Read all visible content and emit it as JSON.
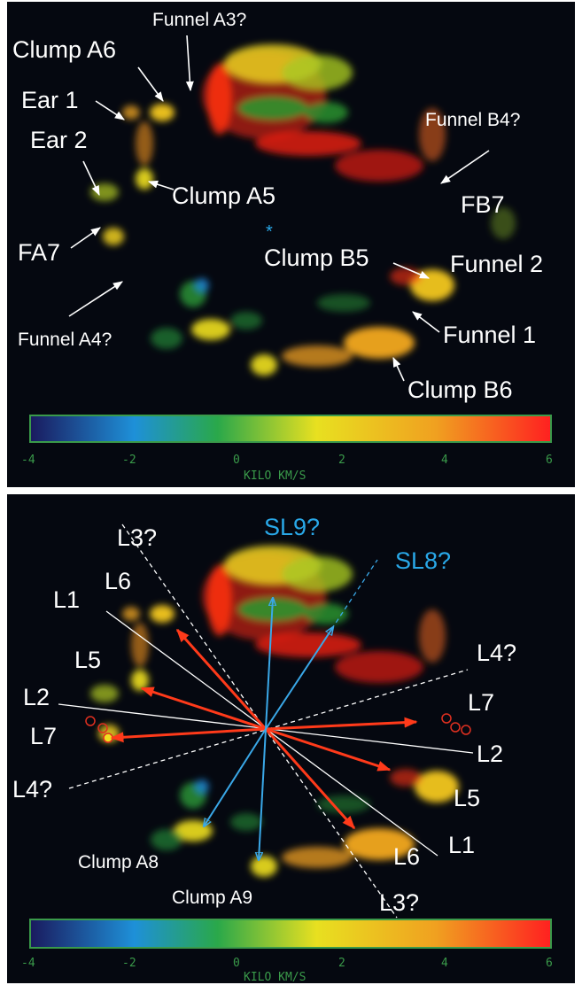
{
  "top_panel": {
    "labels": {
      "funnel_a3": "Funnel A3?",
      "clump_a6": "Clump A6",
      "ear_1": "Ear 1",
      "ear_2": "Ear 2",
      "funnel_b4": "Funnel B4?",
      "clump_a5": "Clump A5",
      "fb7": "FB7",
      "fa7": "FA7",
      "clump_b5": "Clump B5",
      "funnel_2": "Funnel 2",
      "funnel_a4": "Funnel A4?",
      "funnel_1": "Funnel 1",
      "clump_b6": "Clump B6"
    },
    "center_marker": "*"
  },
  "bottom_panel": {
    "labels": {
      "sl9": "SL9?",
      "sl8": "SL8?",
      "l3_top": "L3?",
      "l6_left": "L6",
      "l1_left": "L1",
      "l5_left": "L5",
      "l2_left": "L2",
      "l7_left": "L7",
      "l4_left": "L4?",
      "l4_right": "L4?",
      "l7_right": "L7",
      "l2_right": "L2",
      "l5_right": "L5",
      "l1_right": "L1",
      "l6_right": "L6",
      "l3_bottom": "L3?",
      "clump_a8": "Clump A8",
      "clump_a9": "Clump A9"
    }
  },
  "colorbar": {
    "ticks": [
      "-4",
      "-2",
      "0",
      "2",
      "4",
      "6"
    ],
    "unit_label": "KILO KM/S",
    "gradient_colors": [
      "#1a1a5e",
      "#1e90d8",
      "#2aa84a",
      "#e8e020",
      "#f0a020",
      "#ff2020"
    ]
  },
  "colors": {
    "label_white": "#ffffff",
    "label_blue": "#29a8e8",
    "line_red": "#ff3a1a",
    "line_white": "#ffffff",
    "line_blue": "#3aa8e8",
    "background": "#050810"
  }
}
